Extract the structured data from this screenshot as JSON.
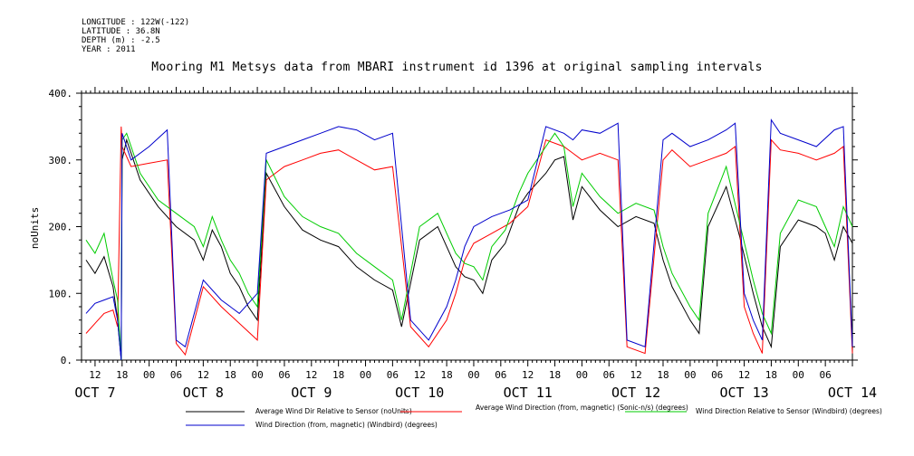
{
  "meta": {
    "longitude": "LONGITUDE : 122W(-122)",
    "latitude": "LATITUDE : 36.8N",
    "depth": "DEPTH (m) : -2.5",
    "year": "YEAR : 2011"
  },
  "chart_data": {
    "type": "line",
    "title": "Mooring M1 Metsys data from MBARI instrument id 1396 at original sampling intervals",
    "ylabel": "noUnits",
    "xlabel": "",
    "ylim": [
      0,
      400
    ],
    "yticks": [
      "0.",
      "100.",
      "200.",
      "300.",
      "400."
    ],
    "xlim_hours": [
      9,
      180
    ],
    "hour_ticks": [
      "12",
      "18",
      "00",
      "06",
      "12",
      "18",
      "00",
      "06",
      "12",
      "18",
      "00",
      "06",
      "12",
      "18",
      "00",
      "06",
      "12",
      "18",
      "00",
      "06",
      "12",
      "18",
      "00",
      "06",
      "12",
      "18",
      "00",
      "06"
    ],
    "day_labels": [
      "OCT  7",
      "OCT  8",
      "OCT  9",
      "OCT 10",
      "OCT 11",
      "OCT 12",
      "OCT 13",
      "OCT 14"
    ],
    "grid": false,
    "legend_placement": "bottom",
    "x_unit": "hours since 2011-10-07 00:00",
    "series": [
      {
        "name": "Average Wind Dir Relative to Sensor (noUnits)",
        "color": "#000000",
        "points": [
          [
            10,
            150
          ],
          [
            12,
            130
          ],
          [
            14,
            155
          ],
          [
            16,
            110
          ],
          [
            17,
            60
          ],
          [
            17.8,
            0
          ],
          [
            18,
            300
          ],
          [
            19,
            330
          ],
          [
            22,
            270
          ],
          [
            26,
            230
          ],
          [
            30,
            200
          ],
          [
            34,
            180
          ],
          [
            36,
            150
          ],
          [
            38,
            195
          ],
          [
            40,
            170
          ],
          [
            42,
            130
          ],
          [
            44,
            110
          ],
          [
            46,
            80
          ],
          [
            48,
            60
          ],
          [
            50,
            280
          ],
          [
            54,
            230
          ],
          [
            58,
            195
          ],
          [
            62,
            180
          ],
          [
            66,
            170
          ],
          [
            70,
            140
          ],
          [
            74,
            120
          ],
          [
            78,
            105
          ],
          [
            80,
            50
          ],
          [
            84,
            180
          ],
          [
            88,
            200
          ],
          [
            90,
            170
          ],
          [
            92,
            140
          ],
          [
            94,
            125
          ],
          [
            96,
            120
          ],
          [
            98,
            100
          ],
          [
            100,
            150
          ],
          [
            103,
            175
          ],
          [
            106,
            230
          ],
          [
            108,
            250
          ],
          [
            112,
            280
          ],
          [
            114,
            300
          ],
          [
            116,
            305
          ],
          [
            118,
            210
          ],
          [
            120,
            260
          ],
          [
            124,
            225
          ],
          [
            128,
            200
          ],
          [
            132,
            215
          ],
          [
            136,
            205
          ],
          [
            138,
            150
          ],
          [
            140,
            110
          ],
          [
            144,
            60
          ],
          [
            146,
            40
          ],
          [
            148,
            200
          ],
          [
            152,
            260
          ],
          [
            155,
            185
          ],
          [
            158,
            100
          ],
          [
            160,
            50
          ],
          [
            162,
            20
          ],
          [
            164,
            170
          ],
          [
            168,
            210
          ],
          [
            172,
            200
          ],
          [
            174,
            190
          ],
          [
            176,
            150
          ],
          [
            178,
            200
          ],
          [
            180,
            175
          ]
        ]
      },
      {
        "name": "Average Wind Direction (from, magnetic) (Sonic-n/s) (degrees)",
        "color": "#ff0000",
        "points": [
          [
            10,
            40
          ],
          [
            12,
            55
          ],
          [
            14,
            70
          ],
          [
            16,
            75
          ],
          [
            17,
            50
          ],
          [
            17.8,
            350
          ],
          [
            18,
            320
          ],
          [
            20,
            290
          ],
          [
            24,
            295
          ],
          [
            28,
            300
          ],
          [
            30,
            25
          ],
          [
            32,
            8
          ],
          [
            36,
            110
          ],
          [
            40,
            80
          ],
          [
            44,
            55
          ],
          [
            48,
            30
          ],
          [
            50,
            270
          ],
          [
            54,
            290
          ],
          [
            58,
            300
          ],
          [
            62,
            310
          ],
          [
            66,
            315
          ],
          [
            70,
            300
          ],
          [
            74,
            285
          ],
          [
            78,
            290
          ],
          [
            82,
            50
          ],
          [
            86,
            20
          ],
          [
            90,
            60
          ],
          [
            92,
            100
          ],
          [
            94,
            150
          ],
          [
            96,
            175
          ],
          [
            100,
            190
          ],
          [
            104,
            205
          ],
          [
            108,
            230
          ],
          [
            112,
            330
          ],
          [
            116,
            320
          ],
          [
            118,
            310
          ],
          [
            120,
            300
          ],
          [
            124,
            310
          ],
          [
            128,
            300
          ],
          [
            130,
            20
          ],
          [
            134,
            10
          ],
          [
            138,
            300
          ],
          [
            140,
            315
          ],
          [
            144,
            290
          ],
          [
            148,
            300
          ],
          [
            152,
            310
          ],
          [
            154,
            320
          ],
          [
            156,
            80
          ],
          [
            158,
            40
          ],
          [
            160,
            10
          ],
          [
            162,
            330
          ],
          [
            164,
            315
          ],
          [
            168,
            310
          ],
          [
            172,
            300
          ],
          [
            176,
            310
          ],
          [
            178,
            320
          ],
          [
            180,
            10
          ]
        ]
      },
      {
        "name": "Wind Direction Relative to Sensor (Windbird) (degrees)",
        "color": "#00cc00",
        "points": [
          [
            10,
            180
          ],
          [
            12,
            160
          ],
          [
            14,
            190
          ],
          [
            16,
            120
          ],
          [
            17,
            90
          ],
          [
            17.8,
            0
          ],
          [
            18,
            330
          ],
          [
            19,
            340
          ],
          [
            22,
            280
          ],
          [
            26,
            240
          ],
          [
            30,
            220
          ],
          [
            34,
            200
          ],
          [
            36,
            170
          ],
          [
            38,
            215
          ],
          [
            40,
            180
          ],
          [
            42,
            150
          ],
          [
            44,
            130
          ],
          [
            46,
            100
          ],
          [
            48,
            80
          ],
          [
            50,
            300
          ],
          [
            54,
            245
          ],
          [
            58,
            215
          ],
          [
            62,
            200
          ],
          [
            66,
            190
          ],
          [
            70,
            160
          ],
          [
            74,
            140
          ],
          [
            78,
            120
          ],
          [
            80,
            60
          ],
          [
            84,
            200
          ],
          [
            88,
            220
          ],
          [
            90,
            190
          ],
          [
            92,
            160
          ],
          [
            94,
            145
          ],
          [
            96,
            140
          ],
          [
            98,
            120
          ],
          [
            100,
            170
          ],
          [
            103,
            195
          ],
          [
            106,
            250
          ],
          [
            108,
            280
          ],
          [
            112,
            320
          ],
          [
            114,
            340
          ],
          [
            116,
            320
          ],
          [
            118,
            230
          ],
          [
            120,
            280
          ],
          [
            124,
            245
          ],
          [
            128,
            220
          ],
          [
            132,
            235
          ],
          [
            136,
            225
          ],
          [
            138,
            170
          ],
          [
            140,
            130
          ],
          [
            144,
            80
          ],
          [
            146,
            60
          ],
          [
            148,
            220
          ],
          [
            152,
            290
          ],
          [
            155,
            205
          ],
          [
            158,
            120
          ],
          [
            160,
            70
          ],
          [
            162,
            40
          ],
          [
            164,
            190
          ],
          [
            168,
            240
          ],
          [
            172,
            230
          ],
          [
            174,
            200
          ],
          [
            176,
            170
          ],
          [
            178,
            230
          ],
          [
            180,
            200
          ]
        ]
      },
      {
        "name": "Wind Direction (from, magnetic) (Windbird) (degrees)",
        "color": "#0000cc",
        "points": [
          [
            10,
            70
          ],
          [
            12,
            85
          ],
          [
            14,
            90
          ],
          [
            16,
            95
          ],
          [
            17,
            60
          ],
          [
            17.8,
            0
          ],
          [
            18,
            340
          ],
          [
            20,
            300
          ],
          [
            24,
            320
          ],
          [
            28,
            345
          ],
          [
            30,
            30
          ],
          [
            32,
            20
          ],
          [
            36,
            120
          ],
          [
            40,
            90
          ],
          [
            44,
            70
          ],
          [
            48,
            100
          ],
          [
            50,
            310
          ],
          [
            54,
            320
          ],
          [
            58,
            330
          ],
          [
            62,
            340
          ],
          [
            66,
            350
          ],
          [
            70,
            345
          ],
          [
            74,
            330
          ],
          [
            78,
            340
          ],
          [
            82,
            60
          ],
          [
            86,
            30
          ],
          [
            90,
            80
          ],
          [
            92,
            120
          ],
          [
            94,
            170
          ],
          [
            96,
            200
          ],
          [
            100,
            215
          ],
          [
            104,
            225
          ],
          [
            108,
            240
          ],
          [
            112,
            350
          ],
          [
            116,
            340
          ],
          [
            118,
            330
          ],
          [
            120,
            345
          ],
          [
            124,
            340
          ],
          [
            128,
            355
          ],
          [
            130,
            30
          ],
          [
            134,
            20
          ],
          [
            138,
            330
          ],
          [
            140,
            340
          ],
          [
            144,
            320
          ],
          [
            148,
            330
          ],
          [
            152,
            345
          ],
          [
            154,
            355
          ],
          [
            156,
            100
          ],
          [
            158,
            60
          ],
          [
            160,
            30
          ],
          [
            162,
            360
          ],
          [
            164,
            340
          ],
          [
            168,
            330
          ],
          [
            172,
            320
          ],
          [
            176,
            345
          ],
          [
            178,
            350
          ],
          [
            180,
            20
          ]
        ]
      }
    ]
  }
}
